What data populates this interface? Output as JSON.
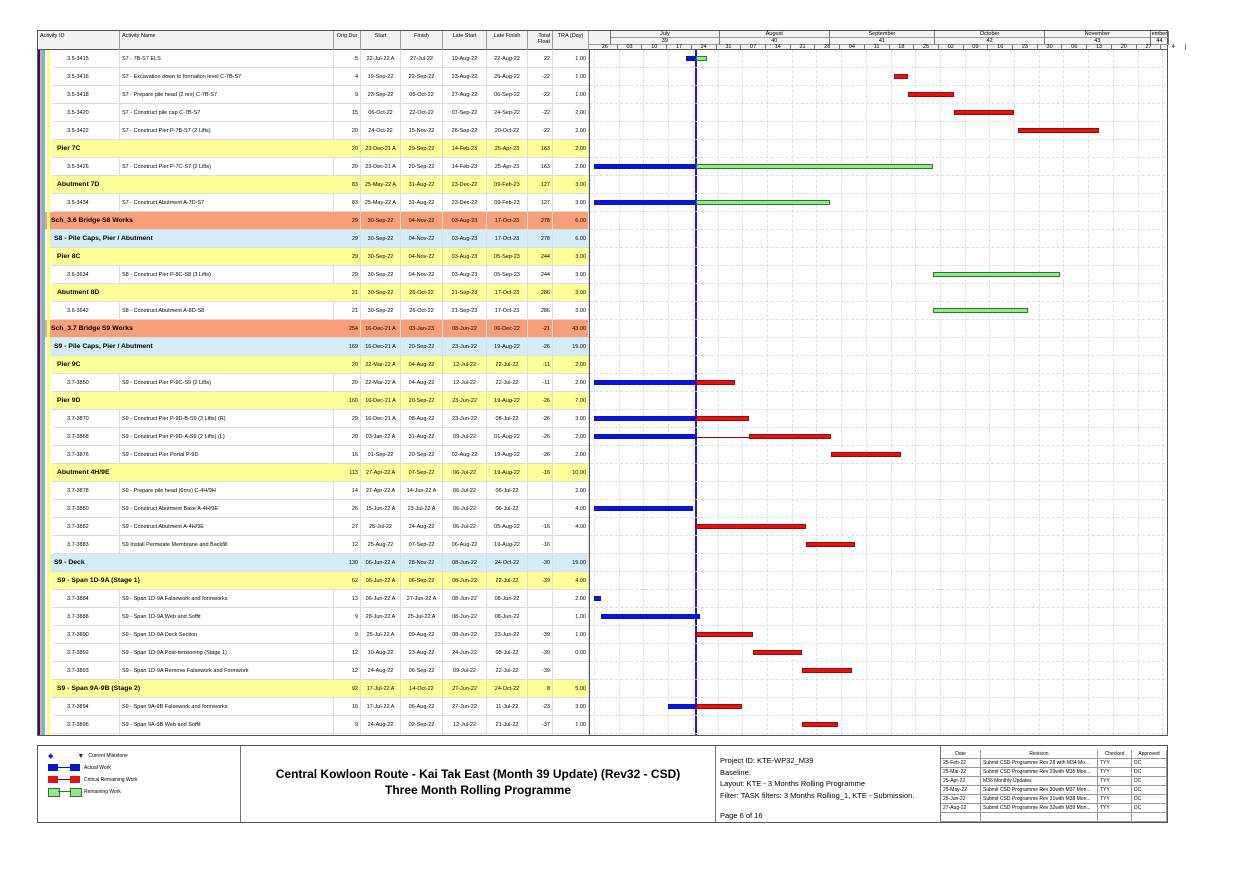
{
  "columns": {
    "id": "Activity ID",
    "name": "Activity Name",
    "dur": "Orig Dur",
    "start": "Start",
    "finish": "Finish",
    "lstart": "Late Start",
    "lfinish": "Late Finish",
    "tf": "Total Float",
    "tra": "TRA (Day)"
  },
  "timescale": {
    "months": [
      {
        "label": "July",
        "week": "39"
      },
      {
        "label": "August",
        "week": "40"
      },
      {
        "label": "September",
        "week": "41"
      },
      {
        "label": "October",
        "week": "42"
      },
      {
        "label": "November",
        "week": "43"
      },
      {
        "label": "ember",
        "week": "44"
      }
    ],
    "weeks": [
      "26",
      "03",
      "10",
      "17",
      "24",
      "31",
      "07",
      "14",
      "21",
      "28",
      "04",
      "11",
      "18",
      "25",
      "02",
      "09",
      "16",
      "23",
      "30",
      "06",
      "13",
      "20",
      "27",
      "4"
    ],
    "start_date": "2022-06-26",
    "data_date": "2022-07-25"
  },
  "colors": {
    "actual": "#0a14d8",
    "critical": "#e01414",
    "remaining": "#8fea8f",
    "level1": "#f79f79",
    "level2": "#d4ecf8",
    "level3": "#ffff99"
  },
  "rows": [
    {
      "type": "task",
      "id": "3.5-3415",
      "name": "S7 - 7B-S7 ELS",
      "dur": "5",
      "start": "22-Jul-22 A",
      "finish": "27-Jul-22",
      "lstart": "19-Aug-22",
      "lfinish": "22-Aug-22",
      "tf": "22",
      "tra": "1.00",
      "bars": [
        [
          "2022-07-22",
          "2022-07-25",
          "actual"
        ],
        [
          "2022-07-25",
          "2022-07-28",
          "remaining"
        ]
      ]
    },
    {
      "type": "task",
      "id": "3.5-3416",
      "name": "S7 - Excavation down to formation level C-7B-S7",
      "dur": "4",
      "start": "19-Sep-22",
      "finish": "22-Sep-22",
      "lstart": "23-Aug-22",
      "lfinish": "26-Aug-22",
      "tf": "-22",
      "tra": "1.00",
      "bars": [
        [
          "2022-09-19",
          "2022-09-23",
          "critical"
        ]
      ]
    },
    {
      "type": "task",
      "id": "3.5-3418",
      "name": "S7 - Prepare pile head (2 nrs) C-7B-S7",
      "dur": "9",
      "start": "23-Sep-22",
      "finish": "05-Oct-22",
      "lstart": "27-Aug-22",
      "lfinish": "06-Sep-22",
      "tf": "-22",
      "tra": "1.00",
      "bars": [
        [
          "2022-09-23",
          "2022-10-06",
          "critical"
        ]
      ]
    },
    {
      "type": "task",
      "id": "3.5-3420",
      "name": "S7 - Construct pile cap C-7B-S7",
      "dur": "15",
      "start": "06-Oct-22",
      "finish": "22-Oct-22",
      "lstart": "07-Sep-22",
      "lfinish": "24-Sep-22",
      "tf": "-22",
      "tra": "2.00",
      "bars": [
        [
          "2022-10-06",
          "2022-10-23",
          "critical"
        ]
      ]
    },
    {
      "type": "task",
      "id": "3.5-3422",
      "name": "S7 - Construct Pier P-7B-S7 (2 Lifts)",
      "dur": "20",
      "start": "24-Oct-22",
      "finish": "15-Nov-22",
      "lstart": "26-Sep-22",
      "lfinish": "20-Oct-22",
      "tf": "-22",
      "tra": "2.00",
      "bars": [
        [
          "2022-10-24",
          "2022-11-16",
          "critical"
        ]
      ]
    },
    {
      "type": "l3",
      "name": "Pier 7C",
      "dur": "20",
      "start": "23-Dec-21 A",
      "finish": "29-Sep-22",
      "lstart": "14-Feb-23",
      "lfinish": "25-Apr-23",
      "tf": "163",
      "tra": "2.00",
      "bars": []
    },
    {
      "type": "task",
      "id": "3.5-3426",
      "name": "S7 - Construct Pier P-7C-S7 (2 Lifts)",
      "dur": "20",
      "start": "23-Dec-21 A",
      "finish": "29-Sep-22",
      "lstart": "14-Feb-23",
      "lfinish": "25-Apr-23",
      "tf": "163",
      "tra": "2.00",
      "bars": [
        [
          "2022-06-26",
          "2022-07-25",
          "actual"
        ],
        [
          "2022-07-25",
          "2022-09-30",
          "remaining"
        ]
      ]
    },
    {
      "type": "l3",
      "name": "Abutment 7D",
      "dur": "83",
      "start": "25-May-22 A",
      "finish": "31-Aug-22",
      "lstart": "23-Dec-22",
      "lfinish": "09-Feb-23",
      "tf": "127",
      "tra": "3.00",
      "bars": []
    },
    {
      "type": "task",
      "id": "3.5-3434",
      "name": "S7 - Construct Abutment A-7D-S7",
      "dur": "83",
      "start": "25-May-22 A",
      "finish": "31-Aug-22",
      "lstart": "23-Dec-22",
      "lfinish": "09-Feb-23",
      "tf": "127",
      "tra": "3.00",
      "bars": [
        [
          "2022-06-26",
          "2022-07-25",
          "actual"
        ],
        [
          "2022-07-25",
          "2022-09-01",
          "remaining"
        ]
      ]
    },
    {
      "type": "l1",
      "name": "Sch_3.6 Bridge S8 Works",
      "dur": "29",
      "start": "30-Sep-22",
      "finish": "04-Nov-22",
      "lstart": "03-Aug-23",
      "lfinish": "17-Oct-23",
      "tf": "278",
      "tra": "6.00",
      "bars": []
    },
    {
      "type": "l2",
      "name": "S8 - Pile Caps, Pier / Abutment",
      "dur": "29",
      "start": "30-Sep-22",
      "finish": "04-Nov-22",
      "lstart": "03-Aug-23",
      "lfinish": "17-Oct-23",
      "tf": "278",
      "tra": "6.00",
      "bars": []
    },
    {
      "type": "l3",
      "name": "Pier 8C",
      "dur": "29",
      "start": "30-Sep-22",
      "finish": "04-Nov-22",
      "lstart": "03-Aug-23",
      "lfinish": "05-Sep-23",
      "tf": "244",
      "tra": "3.00",
      "bars": []
    },
    {
      "type": "task",
      "id": "3.6-3634",
      "name": "S8 - Construct Pier P-8C-S8 (3 Lifts)",
      "dur": "29",
      "start": "30-Sep-22",
      "finish": "04-Nov-22",
      "lstart": "03-Aug-23",
      "lfinish": "05-Sep-23",
      "tf": "244",
      "tra": "3.00",
      "bars": [
        [
          "2022-09-30",
          "2022-11-05",
          "remaining"
        ]
      ]
    },
    {
      "type": "l3",
      "name": "Abutment 8D",
      "dur": "21",
      "start": "30-Sep-22",
      "finish": "26-Oct-22",
      "lstart": "21-Sep-23",
      "lfinish": "17-Oct-23",
      "tf": "286",
      "tra": "3.00",
      "bars": []
    },
    {
      "type": "task",
      "id": "3.6-3642",
      "name": "S8 - Construct Abutment A-8D-S8",
      "dur": "21",
      "start": "30-Sep-22",
      "finish": "26-Oct-22",
      "lstart": "21-Sep-23",
      "lfinish": "17-Oct-23",
      "tf": "286",
      "tra": "3.00",
      "bars": [
        [
          "2022-09-30",
          "2022-10-27",
          "remaining"
        ]
      ]
    },
    {
      "type": "l1",
      "name": "Sch_3.7 Bridge S9 Works",
      "dur": "254",
      "start": "16-Dec-21 A",
      "finish": "03-Jan-23",
      "lstart": "08-Jun-22",
      "lfinish": "06-Dec-22",
      "tf": "-21",
      "tra": "43.00",
      "bars": []
    },
    {
      "type": "l2",
      "name": "S9 - Pile Caps, Pier / Abutment",
      "dur": "169",
      "start": "16-Dec-21 A",
      "finish": "20-Sep-22",
      "lstart": "23-Jun-22",
      "lfinish": "19-Aug-22",
      "tf": "-26",
      "tra": "19.00",
      "bars": []
    },
    {
      "type": "l3",
      "name": "Pier 9C",
      "dur": "20",
      "start": "22-Mar-22 A",
      "finish": "04-Aug-22",
      "lstart": "12-Jul-22",
      "lfinish": "22-Jul-22",
      "tf": "-11",
      "tra": "2.00",
      "bars": []
    },
    {
      "type": "task",
      "id": "3.7-3850",
      "name": "S9 - Construct Pier P-9C-S9 (2 Lifts)",
      "dur": "20",
      "start": "22-Mar-22 A",
      "finish": "04-Aug-22",
      "lstart": "12-Jul-22",
      "lfinish": "22-Jul-22",
      "tf": "-11",
      "tra": "2.00",
      "bars": [
        [
          "2022-06-26",
          "2022-07-25",
          "actual"
        ],
        [
          "2022-07-25",
          "2022-08-05",
          "critical"
        ]
      ]
    },
    {
      "type": "l3",
      "name": "Pier 9D",
      "dur": "160",
      "start": "16-Dec-21 A",
      "finish": "20-Sep-22",
      "lstart": "23-Jun-22",
      "lfinish": "19-Aug-22",
      "tf": "-26",
      "tra": "7.00",
      "bars": []
    },
    {
      "type": "task",
      "id": "3.7-3870",
      "name": "S9 - Construct Pier P-9D-B-S9 (3 Lifts) (R)",
      "dur": "29",
      "start": "16-Dec-21 A",
      "finish": "08-Aug-22",
      "lstart": "23-Jun-22",
      "lfinish": "08-Jul-22",
      "tf": "-26",
      "tra": "3.00",
      "bars": [
        [
          "2022-06-26",
          "2022-07-25",
          "actual"
        ],
        [
          "2022-07-25",
          "2022-08-09",
          "critical"
        ]
      ]
    },
    {
      "type": "task",
      "id": "3.7-3868",
      "name": "S9 - Construct Pier P-9D-A-S9 (2 Lifts) (L)",
      "dur": "20",
      "start": "03-Jan-22 A",
      "finish": "31-Aug-22",
      "lstart": "09-Jul-22",
      "lfinish": "01-Aug-22",
      "tf": "-26",
      "tra": "2.00",
      "bars": [
        [
          "2022-06-26",
          "2022-07-25",
          "actual"
        ],
        [
          "2022-07-25",
          "2022-08-09",
          "link"
        ],
        [
          "2022-08-09",
          "2022-09-01",
          "critical"
        ]
      ]
    },
    {
      "type": "task",
      "id": "3.7-3876",
      "name": "S9 - Construct Pier Portal P-9D",
      "dur": "16",
      "start": "01-Sep-22",
      "finish": "20-Sep-22",
      "lstart": "02-Aug-22",
      "lfinish": "19-Aug-22",
      "tf": "-26",
      "tra": "2.00",
      "bars": [
        [
          "2022-09-01",
          "2022-09-21",
          "critical"
        ]
      ]
    },
    {
      "type": "l3",
      "name": "Abutment 4H/9E",
      "dur": "113",
      "start": "27-Apr-22 A",
      "finish": "07-Sep-22",
      "lstart": "06-Jul-22",
      "lfinish": "19-Aug-22",
      "tf": "-16",
      "tra": "10.00",
      "bars": []
    },
    {
      "type": "task",
      "id": "3.7-3878",
      "name": "S9 - Prepare pile head (6nrs) C-4H/9H",
      "dur": "14",
      "start": "27-Apr-22 A",
      "finish": "14-Jun-22 A",
      "lstart": "06-Jul-22",
      "lfinish": "06-Jul-22",
      "tf": "",
      "tra": "2.00",
      "bars": []
    },
    {
      "type": "task",
      "id": "3.7-3880",
      "name": "S9 - Construct Abutment Base A-4H/9E",
      "dur": "26",
      "start": "15-Jun-22 A",
      "finish": "23-Jul-22 A",
      "lstart": "06-Jul-22",
      "lfinish": "06-Jul-22",
      "tf": "",
      "tra": "4.00",
      "bars": [
        [
          "2022-06-26",
          "2022-07-24",
          "actual"
        ]
      ]
    },
    {
      "type": "task",
      "id": "3.7-3882",
      "name": "S9 - Construct Abutment A-4H/9E",
      "dur": "27",
      "start": "25-Jul-22",
      "finish": "24-Aug-22",
      "lstart": "06-Jul-22",
      "lfinish": "05-Aug-22",
      "tf": "-16",
      "tra": "4.00",
      "bars": [
        [
          "2022-07-25",
          "2022-08-25",
          "critical"
        ]
      ]
    },
    {
      "type": "task",
      "id": "3.7-3883",
      "name": "S9 Install Permeate Membrane and Backfill",
      "dur": "12",
      "start": "25-Aug-22",
      "finish": "07-Sep-22",
      "lstart": "06-Aug-22",
      "lfinish": "19-Aug-22",
      "tf": "-16",
      "tra": "",
      "bars": [
        [
          "2022-08-25",
          "2022-09-08",
          "critical"
        ]
      ]
    },
    {
      "type": "l2",
      "name": "S9 - Deck",
      "dur": "130",
      "start": "06-Jun-22 A",
      "finish": "28-Nov-22",
      "lstart": "08-Jun-22",
      "lfinish": "24-Oct-22",
      "tf": "-30",
      "tra": "19.00",
      "bars": []
    },
    {
      "type": "l3",
      "name": "S9 - Span 1D-9A (Stage 1)",
      "dur": "62",
      "start": "06-Jun-22 A",
      "finish": "06-Sep-22",
      "lstart": "08-Jun-22",
      "lfinish": "22-Jul-22",
      "tf": "-39",
      "tra": "4.00",
      "bars": []
    },
    {
      "type": "task",
      "id": "3.7-3884",
      "name": "S9 - Span 1D-9A Falsework and formworks",
      "dur": "13",
      "start": "06-Jun-22 A",
      "finish": "27-Jun-22 A",
      "lstart": "08-Jun-22",
      "lfinish": "08-Jun-22",
      "tf": "",
      "tra": "2.00",
      "bars": [
        [
          "2022-06-26",
          "2022-06-28",
          "actual"
        ]
      ]
    },
    {
      "type": "task",
      "id": "3.7-3888",
      "name": "S9 - Span 1D-9A Web and Soffit",
      "dur": "9",
      "start": "28-Jun-22 A",
      "finish": "25-Jul-22 A",
      "lstart": "08-Jun-22",
      "lfinish": "08-Jun-22",
      "tf": "",
      "tra": "1.00",
      "bars": [
        [
          "2022-06-28",
          "2022-07-26",
          "actual"
        ]
      ]
    },
    {
      "type": "task",
      "id": "3.7-3890",
      "name": "S9 - Span 1D-9A Deck Section",
      "dur": "9",
      "start": "25-Jul-22 A",
      "finish": "09-Aug-22",
      "lstart": "08-Jun-22",
      "lfinish": "23-Jun-22",
      "tf": "-39",
      "tra": "1.00",
      "bars": [
        [
          "2022-07-25",
          "2022-08-10",
          "critical"
        ]
      ]
    },
    {
      "type": "task",
      "id": "3.7-3892",
      "name": "S9 - Span 1D-9A  Post-tensioning (Stage 1)",
      "dur": "12",
      "start": "10-Aug-22",
      "finish": "23-Aug-22",
      "lstart": "24-Jun-22",
      "lfinish": "08-Jul-22",
      "tf": "-39",
      "tra": "0.00",
      "bars": [
        [
          "2022-08-10",
          "2022-08-24",
          "critical"
        ]
      ]
    },
    {
      "type": "task",
      "id": "3.7-3893",
      "name": "S9 - Span 1D-9A Remove Falsework and Formwork",
      "dur": "12",
      "start": "24-Aug-22",
      "finish": "06-Sep-22",
      "lstart": "09-Jul-22",
      "lfinish": "22-Jul-22",
      "tf": "-39",
      "tra": "",
      "bars": [
        [
          "2022-08-24",
          "2022-09-07",
          "critical"
        ]
      ]
    },
    {
      "type": "l3",
      "name": "S9 - Span 9A-9B (Stage 2)",
      "dur": "92",
      "start": "17-Jul-22 A",
      "finish": "14-Oct-22",
      "lstart": "27-Jun-22",
      "lfinish": "24-Oct-22",
      "tf": "8",
      "tra": "5.00",
      "bars": []
    },
    {
      "type": "task",
      "id": "3.7-3894",
      "name": "S9 - Span 9A-9B Falsework and formworks",
      "dur": "16",
      "start": "17-Jul-22 A",
      "finish": "06-Aug-22",
      "lstart": "27-Jun-22",
      "lfinish": "11-Jul-22",
      "tf": "-23",
      "tra": "3.00",
      "bars": [
        [
          "2022-07-17",
          "2022-07-25",
          "actual"
        ],
        [
          "2022-07-25",
          "2022-08-07",
          "critical"
        ]
      ]
    },
    {
      "type": "task",
      "id": "3.7-3896",
      "name": "S9 - Span 9A-9B Web and Soffit",
      "dur": "9",
      "start": "24-Aug-22",
      "finish": "02-Sep-22",
      "lstart": "12-Jul-22",
      "lfinish": "21-Jul-22",
      "tf": "-37",
      "tra": "1.00",
      "bars": [
        [
          "2022-08-24",
          "2022-09-03",
          "critical"
        ]
      ]
    }
  ],
  "footer": {
    "legend": [
      {
        "label": "Current Milestone",
        "icon": "milestone-icon"
      },
      {
        "label": "Actual Work",
        "kind": "actual"
      },
      {
        "label": "Critical Remaining Work",
        "kind": "critical"
      },
      {
        "label": "Remaining Work",
        "kind": "remaining"
      }
    ],
    "title": "Central Kowloon Route - Kai Tak East (Month 39 Update) (Rev32 - CSD)",
    "subtitle": "Three Month Rolling Programme",
    "project_id": "Project ID: KTE-WP32_M39",
    "baseline": "Baseline:",
    "layout": "Layout: KTE - 3 Months Rolling Programme",
    "filter": "Filter: TASK filters: 3 Months Rolling_1, KTE - Submission.",
    "page": "Page 6 of 16",
    "revision_headers": [
      "Date",
      "Revision",
      "Checked",
      "Approved"
    ],
    "revisions": [
      [
        "25-Feb-22",
        "Submit CSD Programme Rev 28 with M34 Mo...",
        "TYY",
        "DC"
      ],
      [
        "25-Mar-22",
        "Submit CSD Programme Rev 29with M35 Mon...",
        "TYY",
        "DC"
      ],
      [
        "25-Apr-22",
        "M36 Monthly Updates",
        "TYY",
        "DC"
      ],
      [
        "25-May-22",
        "Submit CSD Programme Rev 30with M37 Mon...",
        "TYY",
        "DC"
      ],
      [
        "25-Jun-22",
        "Submit CSD Programme Rev 31with M38 Mon...",
        "TYY",
        "DC"
      ],
      [
        "27-Aug-22",
        "Submit CSD Programme Rev 32with M39 Mon...",
        "TYY",
        "DC"
      ]
    ]
  }
}
